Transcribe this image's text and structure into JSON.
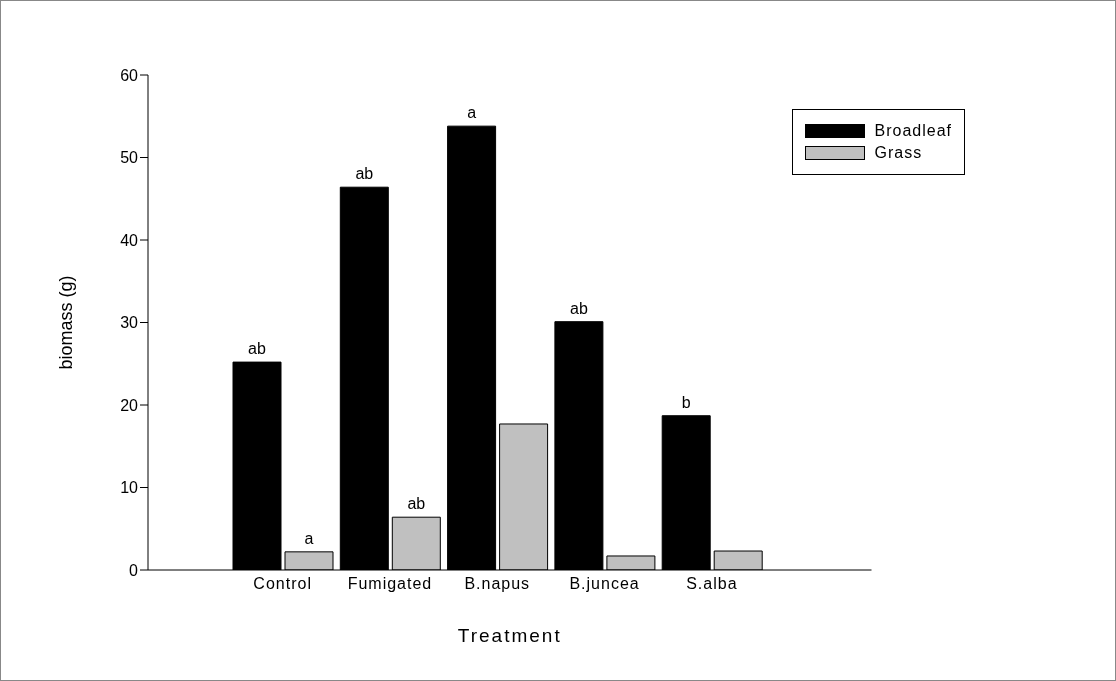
{
  "chart_data": {
    "type": "bar",
    "xlabel": "Treatment",
    "ylabel": "biomass (g)",
    "categories": [
      "Control",
      "Fumigated",
      "B.napus",
      "B.juncea",
      "S.alba"
    ],
    "series": [
      {
        "name": "Broadleaf",
        "color": "#000000",
        "values": [
          25.2,
          46.4,
          53.8,
          30.1,
          18.7
        ]
      },
      {
        "name": "Grass",
        "color": "#c0c0c0",
        "values": [
          2.2,
          6.4,
          17.7,
          1.7,
          2.3
        ]
      }
    ],
    "ylim": [
      0,
      60
    ],
    "yticks": [
      0,
      10,
      20,
      30,
      40,
      50,
      60
    ],
    "grid": false,
    "legend": "top right",
    "annotations": [
      {
        "text": "ab",
        "x": "Control",
        "y": 25.2
      },
      {
        "text": "a",
        "x": "Control",
        "y": 2.2
      },
      {
        "text": "ab",
        "x": "Fumigated",
        "y": 46.4
      },
      {
        "text": "ab",
        "x": "Fumigated",
        "y": 6.4
      },
      {
        "text": "a",
        "x": "B.napus",
        "y": 53.8
      },
      {
        "text": "ab",
        "x": "B.juncea",
        "y": 30.1
      },
      {
        "text": "b",
        "x": "S.alba",
        "y": 18.7
      }
    ]
  }
}
